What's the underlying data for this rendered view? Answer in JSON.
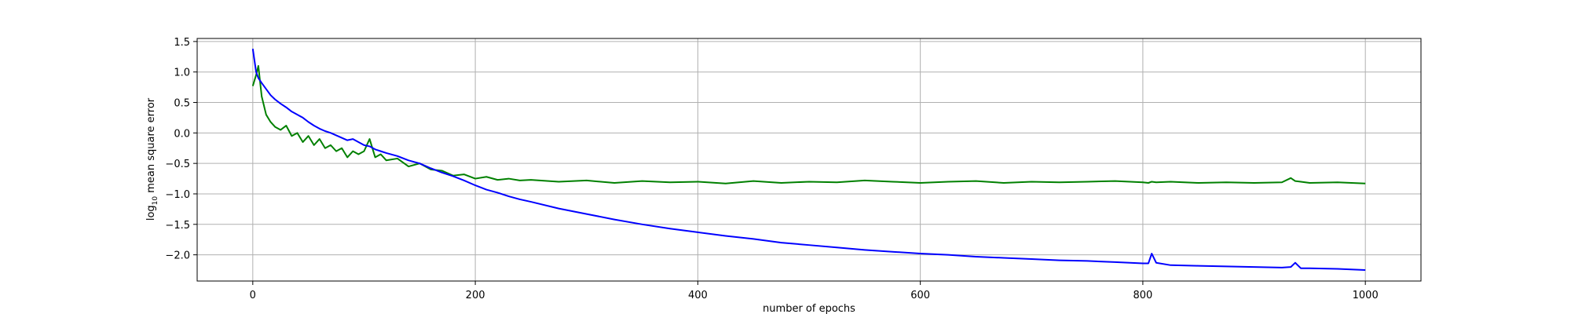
{
  "chart_data": {
    "type": "line",
    "xlabel": "number of epochs",
    "ylabel": {
      "base": "log",
      "subscript": "10",
      "text": " mean square error"
    },
    "x": [
      0,
      3,
      5,
      8,
      12,
      16,
      20,
      25,
      30,
      35,
      40,
      45,
      50,
      55,
      60,
      65,
      70,
      75,
      80,
      85,
      90,
      95,
      100,
      105,
      110,
      115,
      120,
      130,
      140,
      150,
      160,
      170,
      180,
      190,
      200,
      210,
      220,
      230,
      240,
      250,
      275,
      300,
      325,
      350,
      375,
      400,
      425,
      450,
      475,
      500,
      525,
      550,
      575,
      600,
      625,
      650,
      675,
      700,
      725,
      750,
      775,
      800,
      805,
      808,
      812,
      825,
      850,
      875,
      900,
      925,
      933,
      937,
      942,
      950,
      975,
      1000
    ],
    "series": [
      {
        "color": "#0000ff",
        "values": [
          1.38,
          1.0,
          0.9,
          0.82,
          0.72,
          0.62,
          0.55,
          0.48,
          0.42,
          0.35,
          0.3,
          0.25,
          0.18,
          0.12,
          0.07,
          0.03,
          0.0,
          -0.04,
          -0.08,
          -0.12,
          -0.1,
          -0.15,
          -0.2,
          -0.22,
          -0.27,
          -0.3,
          -0.33,
          -0.38,
          -0.45,
          -0.5,
          -0.58,
          -0.65,
          -0.71,
          -0.78,
          -0.86,
          -0.93,
          -0.98,
          -1.04,
          -1.09,
          -1.13,
          -1.24,
          -1.33,
          -1.42,
          -1.5,
          -1.57,
          -1.63,
          -1.69,
          -1.74,
          -1.8,
          -1.84,
          -1.88,
          -1.92,
          -1.95,
          -1.98,
          -2.0,
          -2.03,
          -2.05,
          -2.07,
          -2.09,
          -2.1,
          -2.12,
          -2.14,
          -2.14,
          -1.98,
          -2.13,
          -2.17,
          -2.18,
          -2.19,
          -2.2,
          -2.21,
          -2.2,
          -2.13,
          -2.22,
          -2.22,
          -2.23,
          -2.25
        ]
      },
      {
        "color": "#008000",
        "values": [
          0.77,
          0.95,
          1.1,
          0.6,
          0.3,
          0.18,
          0.1,
          0.05,
          0.12,
          -0.05,
          0.0,
          -0.15,
          -0.05,
          -0.2,
          -0.1,
          -0.25,
          -0.2,
          -0.3,
          -0.25,
          -0.4,
          -0.3,
          -0.35,
          -0.3,
          -0.1,
          -0.4,
          -0.35,
          -0.45,
          -0.42,
          -0.55,
          -0.5,
          -0.6,
          -0.62,
          -0.7,
          -0.68,
          -0.75,
          -0.72,
          -0.77,
          -0.75,
          -0.78,
          -0.77,
          -0.8,
          -0.78,
          -0.82,
          -0.79,
          -0.81,
          -0.8,
          -0.83,
          -0.79,
          -0.82,
          -0.8,
          -0.81,
          -0.78,
          -0.8,
          -0.82,
          -0.8,
          -0.79,
          -0.82,
          -0.8,
          -0.81,
          -0.8,
          -0.79,
          -0.81,
          -0.82,
          -0.8,
          -0.81,
          -0.8,
          -0.82,
          -0.81,
          -0.82,
          -0.81,
          -0.74,
          -0.79,
          -0.8,
          -0.82,
          -0.81,
          -0.83
        ]
      }
    ],
    "xlim": [
      -50,
      1050
    ],
    "xticks": [
      0,
      200,
      400,
      600,
      800,
      1000
    ],
    "ylim": [
      -2.43,
      1.55
    ],
    "yticks": [
      {
        "value": -2,
        "label": "−2.0"
      },
      {
        "value": -1.5,
        "label": "−1.5"
      },
      {
        "value": -1,
        "label": "−1.0"
      },
      {
        "value": -0.5,
        "label": "−0.5"
      },
      {
        "value": 0,
        "label": "0.0"
      },
      0.5,
      {
        "value": 1,
        "label": "1.0"
      },
      1.5
    ],
    "grid": true
  }
}
